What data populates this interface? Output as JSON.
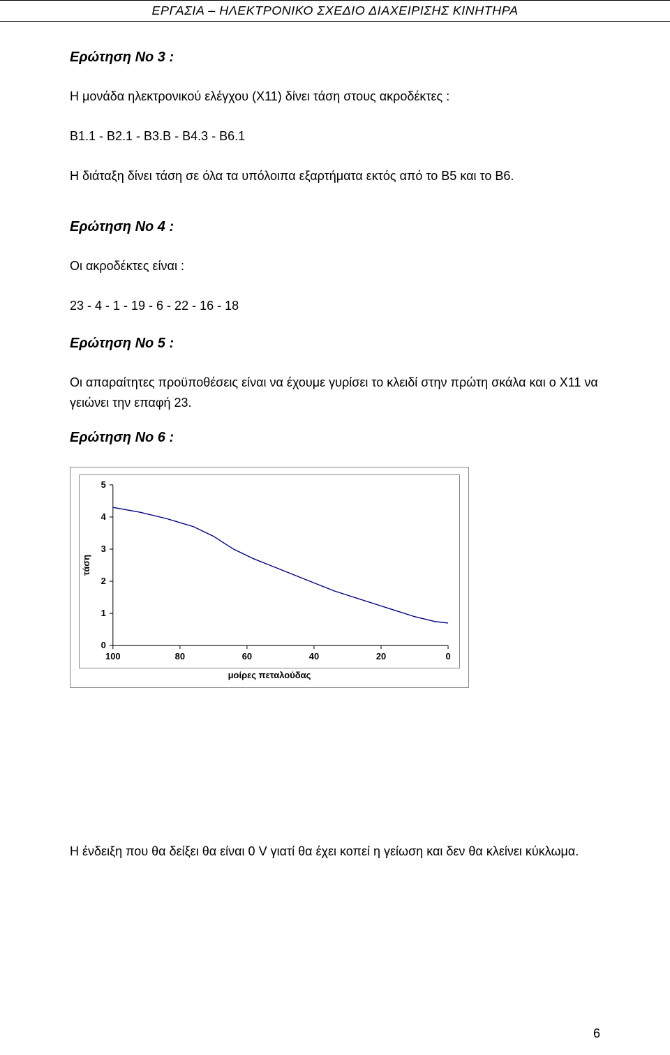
{
  "header": {
    "title": "ΕΡΓΑΣΙΑ – ΗΛΕΚΤΡΟΝΙΚΟ ΣΧΕΔΙΟ ΔΙΑΧΕΙΡΙΣΗΣ ΚΙΝΗΤΗΡΑ"
  },
  "sections": {
    "q3": {
      "heading": "Ερώτηση Νο 3 :",
      "p1": "Η μονάδα ηλεκτρονικού ελέγχου (Χ11) δίνει τάση στους ακροδέκτες :",
      "p2": "Β1.1 - Β2.1 - Β3.Β - Β4.3 - Β6.1",
      "p3": "Η διάταξη δίνει τάση σε όλα τα υπόλοιπα εξαρτήματα εκτός από το Β5 και το Β6."
    },
    "q4": {
      "heading": "Ερώτηση Νο 4 :",
      "p1": "Οι ακροδέκτες είναι :",
      "p2": "23 - 4 - 1 - 19 - 6 - 22 - 16 - 18"
    },
    "q5": {
      "heading": "Ερώτηση Νο 5 :",
      "p1": "Οι απαραίτητες προϋποθέσεις είναι να έχουμε γυρίσει το κλειδί στην πρώτη σκάλα και ο Χ11 να γειώνει την επαφή 23."
    },
    "q6": {
      "heading": "Ερώτηση Νο 6 :"
    }
  },
  "chart": {
    "type": "line",
    "y_label": "τάση",
    "x_label": "μοίρες πεταλούδας",
    "y_ticks": [
      "0",
      "1",
      "2",
      "3",
      "4",
      "5"
    ],
    "x_ticks": [
      "100",
      "80",
      "60",
      "40",
      "20",
      "0"
    ],
    "ylim": [
      0,
      5
    ],
    "xlim_display": [
      100,
      0
    ],
    "line_color": "#000080",
    "line_width": 1.4,
    "background_color": "#ffffff",
    "border_color": "#888888",
    "tick_font_size": 13,
    "tick_font_weight": "bold",
    "tick_color": "#000000",
    "data_points": [
      {
        "x": 100,
        "y": 4.3
      },
      {
        "x": 92,
        "y": 4.15
      },
      {
        "x": 84,
        "y": 3.95
      },
      {
        "x": 76,
        "y": 3.7
      },
      {
        "x": 70,
        "y": 3.4
      },
      {
        "x": 64,
        "y": 3.0
      },
      {
        "x": 58,
        "y": 2.7
      },
      {
        "x": 52,
        "y": 2.45
      },
      {
        "x": 46,
        "y": 2.2
      },
      {
        "x": 40,
        "y": 1.95
      },
      {
        "x": 34,
        "y": 1.7
      },
      {
        "x": 28,
        "y": 1.5
      },
      {
        "x": 22,
        "y": 1.3
      },
      {
        "x": 16,
        "y": 1.1
      },
      {
        "x": 10,
        "y": 0.9
      },
      {
        "x": 4,
        "y": 0.75
      },
      {
        "x": 0,
        "y": 0.7
      }
    ]
  },
  "footer_text": "Η ένδειξη που θα δείξει θα είναι 0 V γιατί θα έχει κοπεί η γείωση και δεν θα κλείνει κύκλωμα.",
  "page_number": "6"
}
